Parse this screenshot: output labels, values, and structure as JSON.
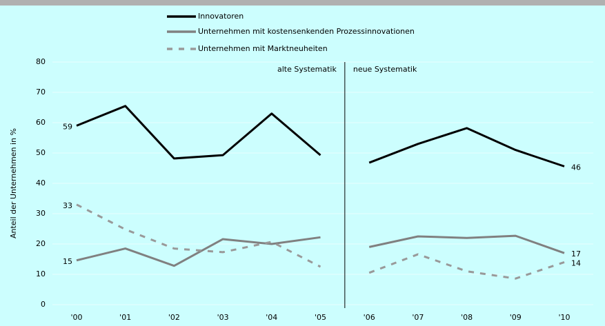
{
  "chart_data": {
    "type": "line",
    "y_label": "Anteil der Unternehmen in %",
    "categories": [
      "'00",
      "'01",
      "'02",
      "'03",
      "'04",
      "'05",
      "'06",
      "'07",
      "'08",
      "'09",
      "'10"
    ],
    "series": [
      {
        "name": "Innovatoren",
        "color": "#000000",
        "dash": false,
        "values": [
          59,
          65.5,
          48.2,
          49.3,
          63,
          49.3,
          46.8,
          53,
          58.2,
          51,
          45.6
        ],
        "value_labels": [
          "59",
          null,
          null,
          null,
          null,
          null,
          null,
          null,
          null,
          null,
          "46"
        ]
      },
      {
        "name": "Unternehmen mit kostensenkenden Prozessinnovationen",
        "color": "#808080",
        "dash": false,
        "values": [
          14.6,
          18.5,
          12.8,
          21.6,
          20,
          22.2,
          19,
          22.5,
          22,
          22.7,
          17
        ],
        "value_labels": [
          "15",
          null,
          null,
          null,
          null,
          null,
          null,
          null,
          null,
          null,
          "17"
        ]
      },
      {
        "name": "Unternehmen mit Marktneuheiten",
        "color": "#999999",
        "dash": true,
        "values": [
          33,
          24.8,
          18.5,
          17.3,
          20.7,
          12.5,
          10.5,
          16.6,
          11,
          8.6,
          14
        ],
        "value_labels": [
          "33",
          null,
          null,
          null,
          null,
          null,
          null,
          null,
          null,
          null,
          "14"
        ]
      }
    ],
    "divider": {
      "after_category": 5,
      "left_label": "alte Systematik",
      "right_label": "neue Systematik"
    },
    "ylim": [
      0,
      80
    ],
    "yticks": [
      0,
      10,
      20,
      30,
      40,
      50,
      60,
      70,
      80
    ],
    "grid": true
  }
}
